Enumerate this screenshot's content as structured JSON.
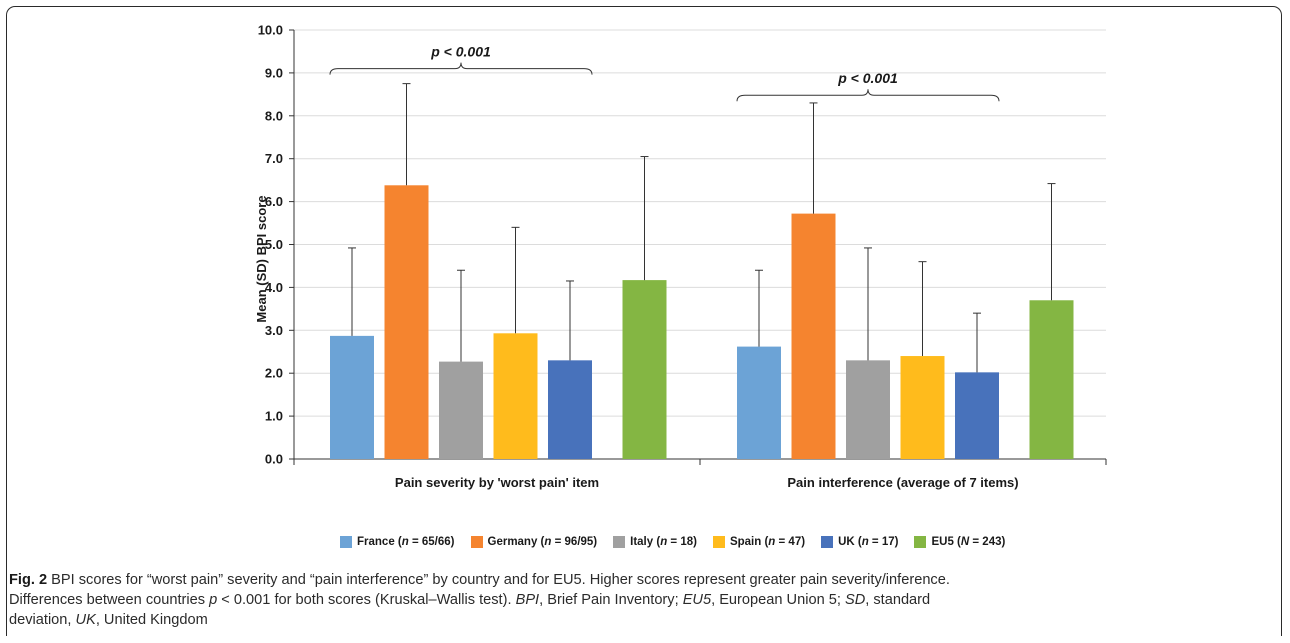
{
  "chart_data": {
    "type": "bar",
    "ylabel": "Mean (SD) BPI score",
    "ylim": [
      0,
      10
    ],
    "yticks": [
      "0.0",
      "1.0",
      "2.0",
      "3.0",
      "4.0",
      "5.0",
      "6.0",
      "7.0",
      "8.0",
      "9.0",
      "10.0"
    ],
    "grid": true,
    "categories": [
      "Pain severity by 'worst pain' item",
      "Pain interference (average of 7 items)"
    ],
    "series": [
      {
        "name": "France",
        "n_text": "n = 65/66",
        "color": "#6CA3D6",
        "values": [
          2.87,
          2.62
        ],
        "sd_upper": [
          4.92,
          4.4
        ]
      },
      {
        "name": "Germany",
        "n_text": "n = 96/95",
        "color": "#F5842F",
        "values": [
          6.38,
          5.72
        ],
        "sd_upper": [
          8.75,
          8.3
        ]
      },
      {
        "name": "Italy",
        "n_text": "n = 18",
        "color": "#A0A0A0",
        "values": [
          2.27,
          2.3
        ],
        "sd_upper": [
          4.4,
          4.92
        ]
      },
      {
        "name": "Spain",
        "n_text": "n = 47",
        "color": "#FFBB1C",
        "values": [
          2.93,
          2.4
        ],
        "sd_upper": [
          5.4,
          4.6
        ]
      },
      {
        "name": "UK",
        "n_text": "n = 17",
        "color": "#4872BB",
        "values": [
          2.3,
          2.02
        ],
        "sd_upper": [
          4.15,
          3.4
        ]
      },
      {
        "name": "EU5",
        "n_text": "N = 243",
        "color": "#84B643",
        "values": [
          4.17,
          3.7
        ],
        "sd_upper": [
          7.05,
          6.42
        ]
      }
    ],
    "annotations": [
      {
        "group": 0,
        "text": "p < 0.001",
        "span_series": [
          0,
          4
        ],
        "at_y": 9.1
      },
      {
        "group": 1,
        "text": "p < 0.001",
        "span_series": [
          0,
          4
        ],
        "at_y": 8.48
      }
    ]
  },
  "caption": {
    "fig_label": "Fig. 2",
    "line1": " BPI scores for “worst pain” severity and “pain interference” by country and for EU5. Higher scores represent greater pain severity/inference.",
    "line2_a": "Differences between countries ",
    "line2_p": "p",
    "line2_b": " < 0.001 for both scores (Kruskal–Wallis test). ",
    "abbr_bpi": "BPI",
    "abbr_bpi_def": ", Brief Pain Inventory; ",
    "abbr_eu5": "EU5",
    "abbr_eu5_def": ", European Union 5; ",
    "abbr_sd": "SD",
    "abbr_sd_def": ", standard",
    "line3_a": "deviation, ",
    "abbr_uk": "UK",
    "abbr_uk_def": ", United Kingdom"
  }
}
